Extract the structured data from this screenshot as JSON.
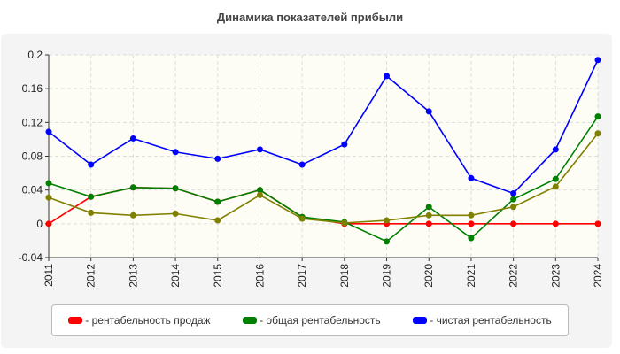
{
  "chart_data": {
    "type": "line",
    "title": "Динамика показателей прибыли",
    "x": [
      "2011",
      "2012",
      "2013",
      "2014",
      "2015",
      "2016",
      "2017",
      "2018",
      "2019",
      "2020",
      "2021",
      "2022",
      "2023",
      "2024"
    ],
    "ylim": [
      -0.04,
      0.2
    ],
    "yticks": [
      "-0.04",
      "0",
      "0.04",
      "0.08",
      "0.12",
      "0.16",
      "0.2"
    ],
    "ytick_values": [
      -0.04,
      0,
      0.04,
      0.08,
      0.12,
      0.16,
      0.2
    ],
    "grid": true,
    "legend_placement": "bottom",
    "series": [
      {
        "name": "- рентабельность продаж",
        "color": "#ff0000",
        "values": [
          0,
          0.032,
          0.043,
          0.042,
          0.026,
          0.04,
          0.008,
          0,
          0,
          0,
          0,
          0,
          0,
          0
        ]
      },
      {
        "name": "- общая рентабельность",
        "color": "#008000",
        "values": [
          0.048,
          0.032,
          0.043,
          0.042,
          0.026,
          0.04,
          0.008,
          0.002,
          -0.021,
          0.02,
          -0.017,
          0.029,
          0.053,
          0.127
        ]
      },
      {
        "name": "- чистая рентабельность",
        "color": "#0000ff",
        "values": [
          0.109,
          0.07,
          0.101,
          0.085,
          0.077,
          0.088,
          0.07,
          0.094,
          0.175,
          0.133,
          0.054,
          0.036,
          0.088,
          0.194
        ]
      },
      {
        "name": "",
        "color": "#808000",
        "values": [
          0.031,
          0.013,
          0.01,
          0.012,
          0.004,
          0.034,
          0.006,
          0.001,
          0.004,
          0.01,
          0.01,
          0.02,
          0.044,
          0.107
        ]
      }
    ]
  }
}
